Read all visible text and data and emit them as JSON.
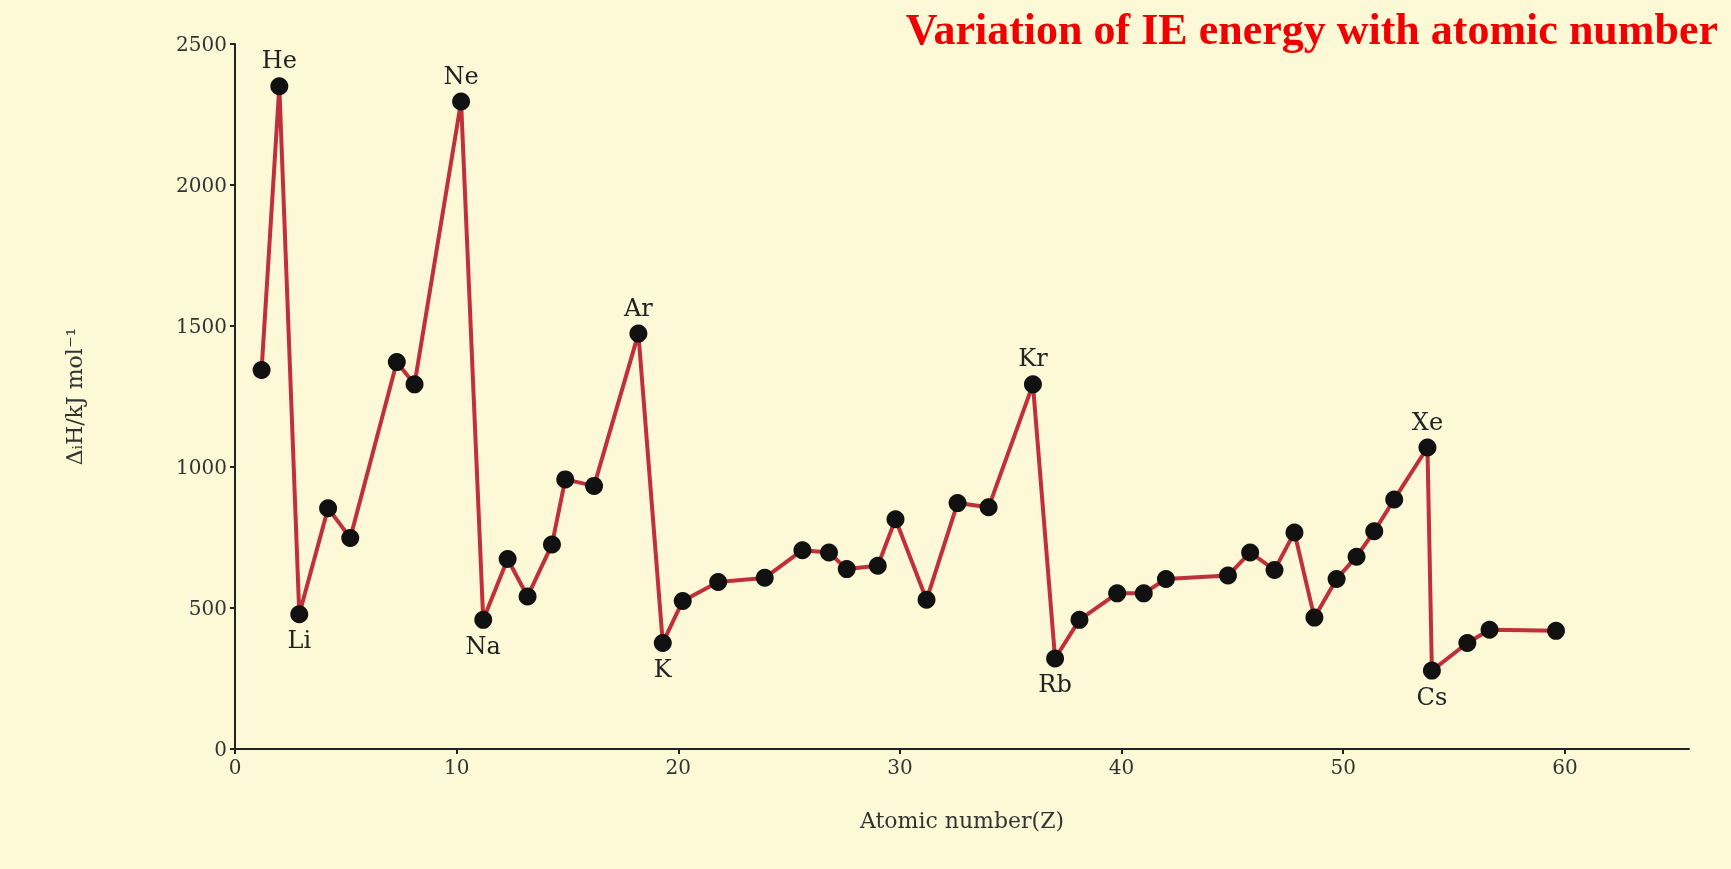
{
  "chart_data": {
    "type": "line",
    "title": "Variation of IE energy with atomic number",
    "xlabel": "Atomic number(Z)",
    "ylabel": "ΔᵢH/kJ mol⁻¹",
    "x": [
      1.2,
      2,
      2.9,
      4.2,
      5.2,
      7.3,
      8.1,
      10.2,
      11.2,
      12.3,
      13.2,
      14.3,
      14.9,
      16.2,
      18.2,
      19.3,
      20.2,
      21.8,
      23.9,
      25.6,
      26.8,
      27.6,
      29,
      29.8,
      31.2,
      32.6,
      34,
      36,
      37,
      38.1,
      39.8,
      41,
      42,
      44.8,
      45.8,
      46.9,
      47.8,
      48.7,
      49.7,
      50.6,
      51.4,
      52.3,
      53.8,
      54,
      55.6,
      56.6,
      59.6
    ],
    "series": [
      {
        "color": "#c0303a",
        "values": [
          1344,
          2350,
          478,
          854,
          748,
          1372,
          1293,
          2296,
          458,
          674,
          541,
          725,
          956,
          933,
          1473,
          376,
          525,
          592,
          607,
          705,
          697,
          638,
          650,
          815,
          529,
          872,
          857,
          1293,
          321,
          458,
          552,
          552,
          603,
          615,
          697,
          635,
          768,
          466,
          603,
          682,
          772,
          885,
          1069,
          278,
          376,
          423,
          419
        ]
      }
    ],
    "xlim": [
      0,
      65.6
    ],
    "xticks": [
      0,
      10,
      20,
      30,
      40,
      50,
      60
    ],
    "ylim": [
      0,
      2500
    ],
    "yticks": [
      0,
      500,
      1000,
      1500,
      2000,
      2500
    ],
    "grid": false,
    "marker": "circle",
    "line_style": "solid",
    "annotations": [
      {
        "text": "He",
        "x": 2,
        "y": 2350
      },
      {
        "text": "Ne",
        "x": 10.2,
        "y": 2296
      },
      {
        "text": "Ar",
        "x": 18.2,
        "y": 1473
      },
      {
        "text": "Kr",
        "x": 36,
        "y": 1293
      },
      {
        "text": "Xe",
        "x": 53.8,
        "y": 1069
      },
      {
        "text": "Li",
        "x": 2.9,
        "y": 478
      },
      {
        "text": "Na",
        "x": 11.2,
        "y": 458
      },
      {
        "text": "K",
        "x": 19.3,
        "y": 376
      },
      {
        "text": "Rb",
        "x": 37,
        "y": 321
      },
      {
        "text": "Cs",
        "x": 54,
        "y": 278
      }
    ]
  }
}
